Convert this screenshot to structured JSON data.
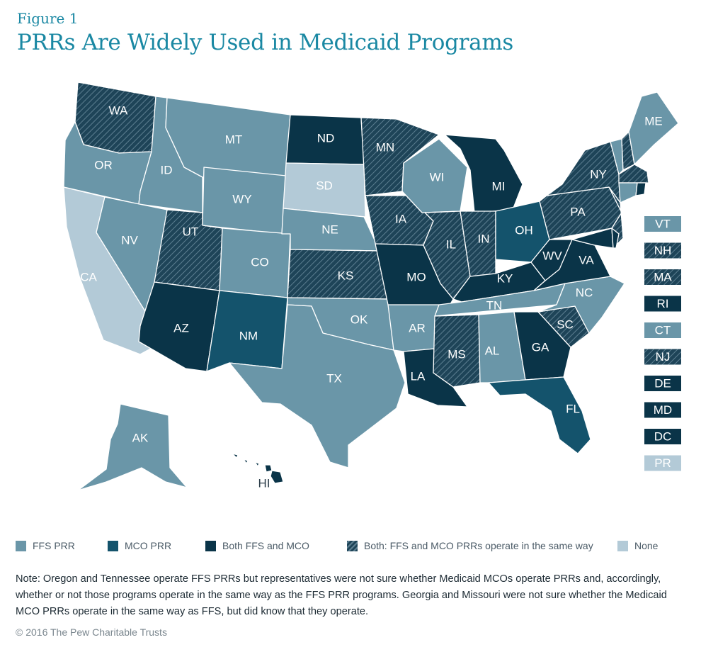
{
  "figure_label": "Figure 1",
  "title": "PRRs Are Widely Used in Medicaid Programs",
  "colors": {
    "ffs": "#6a96a8",
    "mco": "#14536c",
    "both": "#0a3448",
    "hatch_base": "#1e4458",
    "none": "#b3cad7",
    "hatch_line": "#5d7f91"
  },
  "categories": {
    "ffs": "FFS PRR",
    "mco": "MCO PRR",
    "both": "Both FFS and MCO",
    "hatch": "Both: FFS and MCO PRRs operate in the same way",
    "none": "None"
  },
  "states": [
    {
      "id": "WA",
      "name": "WA",
      "cat": "hatch"
    },
    {
      "id": "OR",
      "name": "OR",
      "cat": "ffs"
    },
    {
      "id": "CA",
      "name": "CA",
      "cat": "none"
    },
    {
      "id": "ID",
      "name": "ID",
      "cat": "ffs"
    },
    {
      "id": "NV",
      "name": "NV",
      "cat": "ffs"
    },
    {
      "id": "MT",
      "name": "MT",
      "cat": "ffs"
    },
    {
      "id": "WY",
      "name": "WY",
      "cat": "ffs"
    },
    {
      "id": "UT",
      "name": "UT",
      "cat": "hatch"
    },
    {
      "id": "AZ",
      "name": "AZ",
      "cat": "both"
    },
    {
      "id": "CO",
      "name": "CO",
      "cat": "ffs"
    },
    {
      "id": "NM",
      "name": "NM",
      "cat": "mco"
    },
    {
      "id": "ND",
      "name": "ND",
      "cat": "both"
    },
    {
      "id": "SD",
      "name": "SD",
      "cat": "none"
    },
    {
      "id": "NE",
      "name": "NE",
      "cat": "ffs"
    },
    {
      "id": "KS",
      "name": "KS",
      "cat": "hatch"
    },
    {
      "id": "OK",
      "name": "OK",
      "cat": "ffs"
    },
    {
      "id": "TX",
      "name": "TX",
      "cat": "ffs"
    },
    {
      "id": "MN",
      "name": "MN",
      "cat": "hatch"
    },
    {
      "id": "IA",
      "name": "IA",
      "cat": "hatch"
    },
    {
      "id": "MO",
      "name": "MO",
      "cat": "both"
    },
    {
      "id": "AR",
      "name": "AR",
      "cat": "ffs"
    },
    {
      "id": "LA",
      "name": "LA",
      "cat": "both"
    },
    {
      "id": "WI",
      "name": "WI",
      "cat": "ffs"
    },
    {
      "id": "IL",
      "name": "IL",
      "cat": "hatch"
    },
    {
      "id": "MI",
      "name": "MI",
      "cat": "both"
    },
    {
      "id": "IN",
      "name": "IN",
      "cat": "hatch"
    },
    {
      "id": "OH",
      "name": "OH",
      "cat": "mco"
    },
    {
      "id": "KY",
      "name": "KY",
      "cat": "both"
    },
    {
      "id": "TN",
      "name": "TN",
      "cat": "ffs"
    },
    {
      "id": "MS",
      "name": "MS",
      "cat": "hatch"
    },
    {
      "id": "AL",
      "name": "AL",
      "cat": "ffs"
    },
    {
      "id": "GA",
      "name": "GA",
      "cat": "both"
    },
    {
      "id": "FL",
      "name": "FL",
      "cat": "mco"
    },
    {
      "id": "SC",
      "name": "SC",
      "cat": "hatch"
    },
    {
      "id": "NC",
      "name": "NC",
      "cat": "ffs"
    },
    {
      "id": "VA",
      "name": "VA",
      "cat": "both"
    },
    {
      "id": "WV",
      "name": "WV",
      "cat": "both"
    },
    {
      "id": "PA",
      "name": "PA",
      "cat": "hatch"
    },
    {
      "id": "NY",
      "name": "NY",
      "cat": "hatch"
    },
    {
      "id": "ME",
      "name": "ME",
      "cat": "ffs"
    },
    {
      "id": "AK",
      "name": "AK",
      "cat": "ffs"
    },
    {
      "id": "HI",
      "name": "HI",
      "cat": "both"
    }
  ],
  "small_states": [
    {
      "name": "VT",
      "cat": "ffs"
    },
    {
      "name": "NH",
      "cat": "hatch"
    },
    {
      "name": "MA",
      "cat": "hatch"
    },
    {
      "name": "RI",
      "cat": "both"
    },
    {
      "name": "CT",
      "cat": "ffs"
    },
    {
      "name": "NJ",
      "cat": "hatch"
    },
    {
      "name": "DE",
      "cat": "both"
    },
    {
      "name": "MD",
      "cat": "both"
    },
    {
      "name": "DC",
      "cat": "both"
    },
    {
      "name": "PR",
      "cat": "none"
    }
  ],
  "note": "Note: Oregon and Tennessee operate FFS PRRs but representatives were not sure whether Medicaid MCOs operate PRRs and, accordingly, whether or not those programs operate in the same way as the FFS PRR programs. Georgia and Missouri were not sure whether the Medicaid MCO PRRs operate in the same way as FFS, but did know that they operate.",
  "copyright": "© 2016 The Pew Charitable Trusts"
}
